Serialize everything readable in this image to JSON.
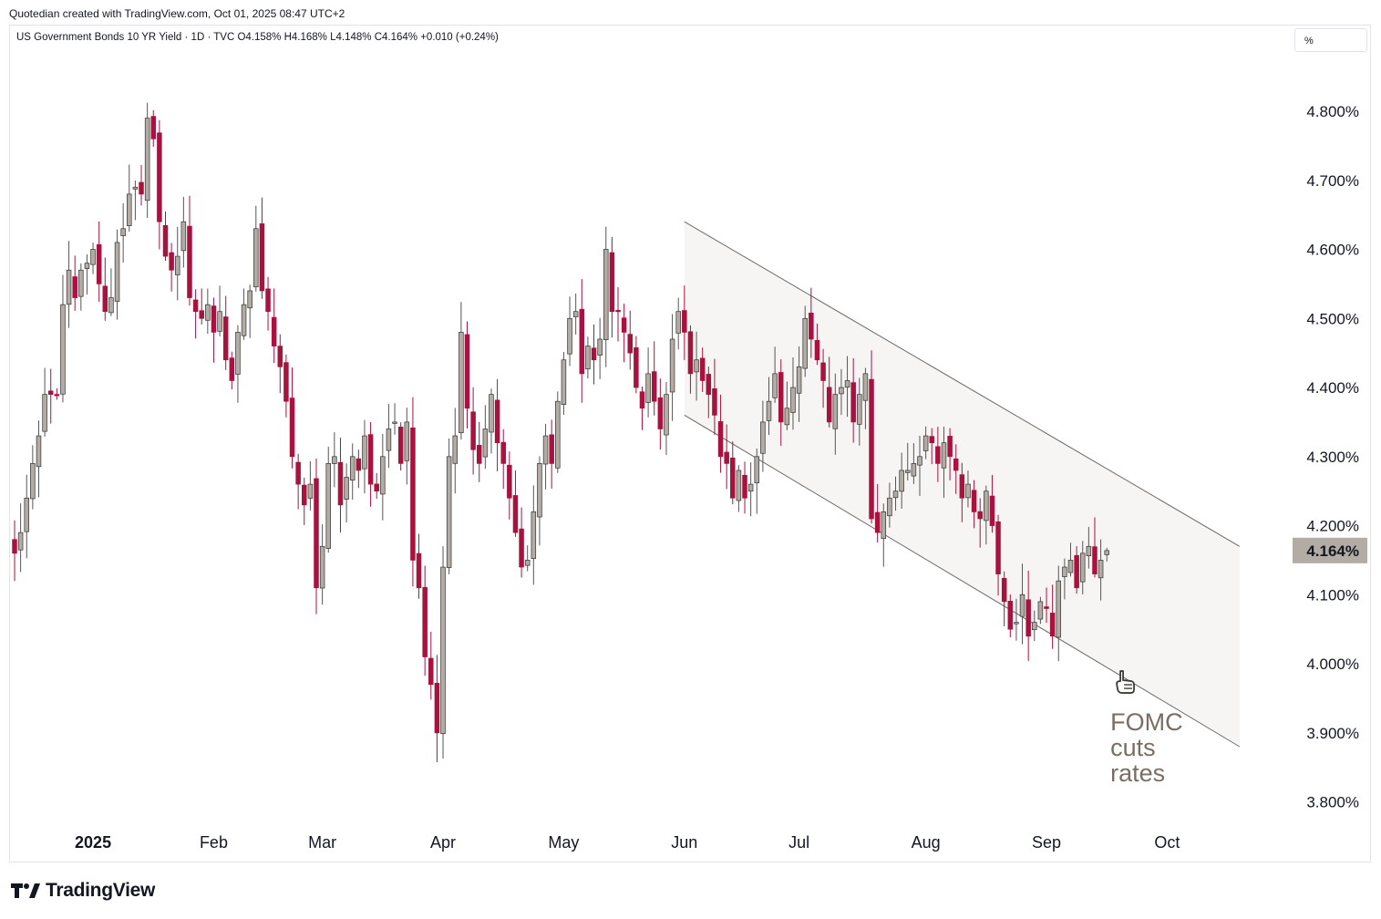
{
  "header": {
    "caption": "Quotedian created with TradingView.com, Oct 01, 2025 08:47 UTC+2"
  },
  "legend": {
    "text": "US Government Bonds 10 YR Yield · 1D · TVC  O4.158%  H4.168%  L4.148%  C4.164%  +0.010 (+0.24%)"
  },
  "scale_mode": {
    "label": "%"
  },
  "brand": {
    "name": "TradingView"
  },
  "colors": {
    "up": "#b2aca5",
    "down": "#a8123e",
    "channel_fill": "#f7f5f3",
    "channel_line": "#6b6b6b",
    "price_label_bg": "#b2aca5",
    "annotation": "#7a6e62"
  },
  "chart_data": {
    "type": "candlestick",
    "symbol": "US Government Bonds 10 YR Yield",
    "interval": "1D",
    "source": "TVC",
    "last": {
      "open": 4.158,
      "high": 4.168,
      "low": 4.148,
      "close": 4.164,
      "change": 0.01,
      "change_pct": 0.24,
      "label": "4.164%"
    },
    "ylim": [
      3.75,
      4.92
    ],
    "y_ticks": [
      {
        "value": 4.8,
        "label": "4.800%"
      },
      {
        "value": 4.7,
        "label": "4.700%"
      },
      {
        "value": 4.6,
        "label": "4.600%"
      },
      {
        "value": 4.5,
        "label": "4.500%"
      },
      {
        "value": 4.4,
        "label": "4.400%"
      },
      {
        "value": 4.3,
        "label": "4.300%"
      },
      {
        "value": 4.2,
        "label": "4.200%"
      },
      {
        "value": 4.1,
        "label": "4.100%"
      },
      {
        "value": 4.0,
        "label": "4.000%"
      },
      {
        "value": 3.9,
        "label": "3.900%"
      },
      {
        "value": 3.8,
        "label": "3.800%"
      }
    ],
    "x_ticks": [
      {
        "index": 13,
        "label": "2025",
        "bold": true
      },
      {
        "index": 33,
        "label": "Feb"
      },
      {
        "index": 51,
        "label": "Mar"
      },
      {
        "index": 71,
        "label": "Apr"
      },
      {
        "index": 91,
        "label": "May"
      },
      {
        "index": 111,
        "label": "Jun"
      },
      {
        "index": 130,
        "label": "Jul"
      },
      {
        "index": 151,
        "label": "Aug"
      },
      {
        "index": 171,
        "label": "Sep"
      },
      {
        "index": 191,
        "label": "Oct"
      }
    ],
    "closes": [
      4.16,
      4.19,
      4.24,
      4.29,
      4.33,
      4.39,
      4.39,
      4.39,
      4.52,
      4.57,
      4.53,
      4.57,
      4.58,
      4.6,
      4.55,
      4.51,
      4.53,
      4.61,
      4.63,
      4.68,
      4.69,
      4.68,
      4.79,
      4.76,
      4.64,
      4.59,
      4.57,
      4.59,
      4.64,
      4.53,
      4.51,
      4.5,
      4.52,
      4.48,
      4.51,
      4.44,
      4.41,
      4.48,
      4.52,
      4.54,
      4.63,
      4.54,
      4.51,
      4.46,
      4.43,
      4.38,
      4.3,
      4.26,
      4.23,
      4.26,
      4.11,
      4.17,
      4.29,
      4.3,
      4.23,
      4.27,
      4.3,
      4.28,
      4.33,
      4.26,
      4.25,
      4.3,
      4.34,
      4.35,
      4.29,
      4.35,
      4.15,
      4.11,
      4.01,
      3.97,
      3.9,
      4.14,
      4.3,
      4.33,
      4.48,
      4.37,
      4.31,
      4.29,
      4.34,
      4.39,
      4.32,
      4.29,
      4.24,
      4.19,
      4.14,
      4.15,
      4.22,
      4.29,
      4.33,
      4.29,
      4.38,
      4.44,
      4.5,
      4.51,
      4.42,
      4.46,
      4.44,
      4.47,
      4.6,
      4.51,
      4.51,
      4.48,
      4.45,
      4.4,
      4.37,
      4.42,
      4.38,
      4.34,
      4.39,
      4.47,
      4.51,
      4.48,
      4.42,
      4.44,
      4.41,
      4.39,
      4.36,
      4.3,
      4.29,
      4.24,
      4.28,
      4.24,
      4.26,
      4.3,
      4.35,
      4.38,
      4.42,
      4.35,
      4.37,
      4.4,
      4.43,
      4.5,
      4.47,
      4.44,
      4.41,
      4.35,
      4.39,
      4.4,
      4.41,
      4.35,
      4.39,
      4.42,
      4.21,
      4.19,
      4.22,
      4.24,
      4.25,
      4.28,
      4.28,
      4.29,
      4.3,
      4.33,
      4.32,
      4.29,
      4.32,
      4.3,
      4.28,
      4.24,
      4.26,
      4.22,
      4.21,
      4.25,
      4.2,
      4.13,
      4.09,
      4.05,
      4.06,
      4.1,
      4.04,
      4.06,
      4.09,
      4.08,
      4.04,
      4.12,
      4.14,
      4.15,
      4.11,
      4.16,
      4.17,
      4.13,
      4.15,
      4.16
    ]
  },
  "channel": {
    "upper": [
      [
        111,
        4.64
      ],
      [
        203,
        4.17
      ]
    ],
    "lower": [
      [
        111,
        4.36
      ],
      [
        203,
        3.88
      ]
    ]
  },
  "annotations": [
    {
      "index": 184,
      "value": 4.0,
      "lines": [
        "FOMC",
        "cuts",
        "rates"
      ],
      "icon": "pointing-hand-icon"
    }
  ]
}
